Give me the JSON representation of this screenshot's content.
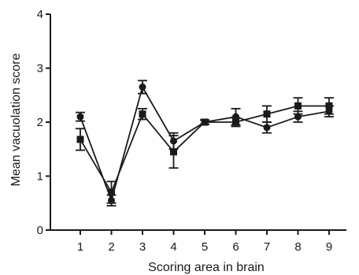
{
  "chart_data": {
    "type": "line",
    "xlabel": "Scoring area in brain",
    "ylabel": "Mean vacuolation score",
    "x": [
      1,
      2,
      3,
      4,
      5,
      6,
      7,
      8,
      9
    ],
    "x_tick_labels": [
      "1",
      "2",
      "3",
      "4",
      "5",
      "6",
      "7",
      "8",
      "9"
    ],
    "ylim": [
      0,
      4
    ],
    "y_ticks": [
      0,
      1,
      2,
      3,
      4
    ],
    "y_tick_labels": [
      "0",
      "1",
      "2",
      "3",
      "4"
    ],
    "grid": false,
    "legend": "none",
    "series": [
      {
        "marker": "circle",
        "values": [
          2.1,
          0.55,
          2.65,
          1.65,
          2.0,
          2.1,
          1.9,
          2.1,
          2.2
        ],
        "errors": [
          0.08,
          0.1,
          0.12,
          0.15,
          0.04,
          0.15,
          0.1,
          0.1,
          0.1
        ]
      },
      {
        "marker": "square",
        "values": [
          1.68,
          0.7,
          2.15,
          1.45,
          2.0,
          2.0,
          2.15,
          2.3,
          2.3
        ],
        "errors": [
          0.2,
          0.2,
          0.1,
          0.3,
          0.04,
          0.08,
          0.15,
          0.15,
          0.15
        ]
      }
    ],
    "colors": {
      "series": "#1a1a1a",
      "axis": "#1a1a1a"
    }
  }
}
